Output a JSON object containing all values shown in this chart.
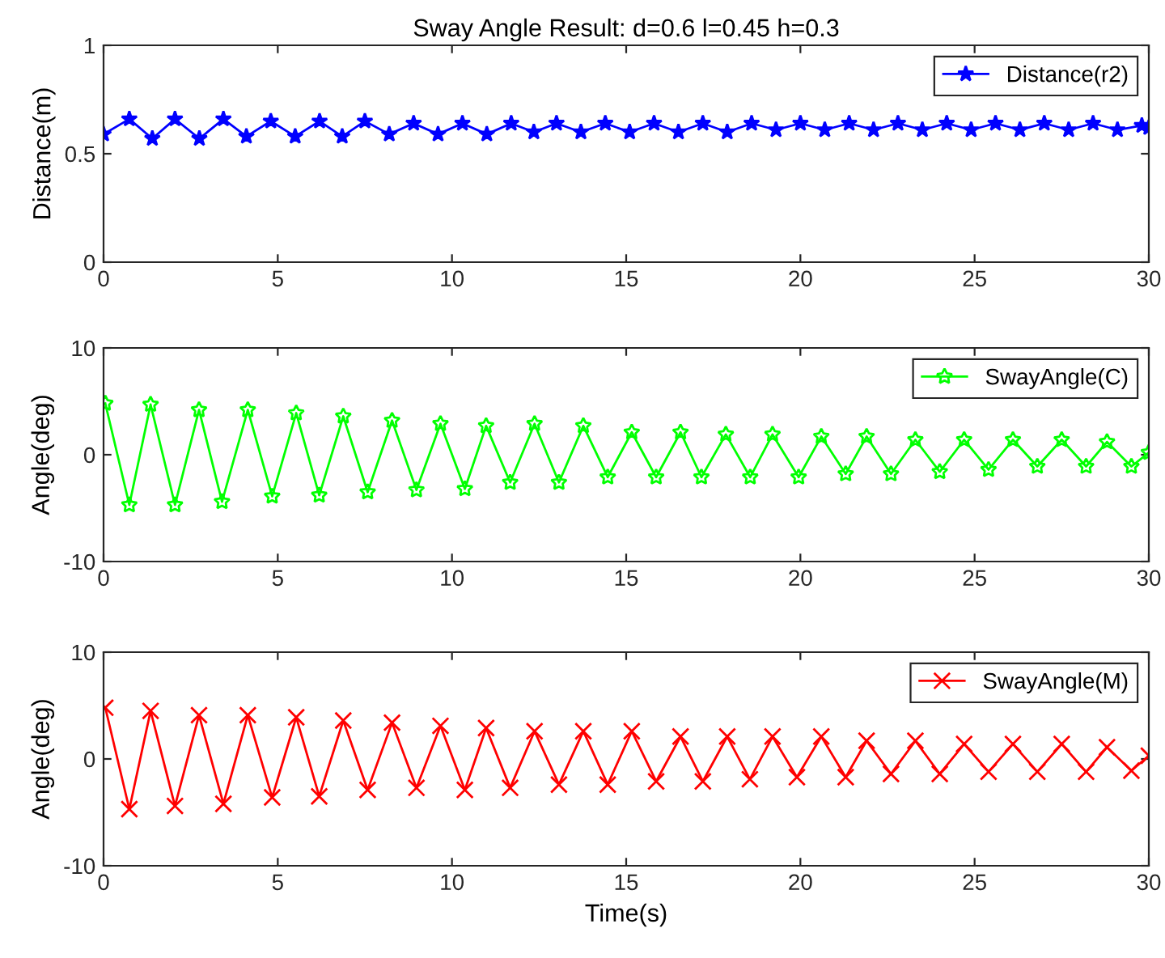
{
  "chart_data": [
    {
      "type": "line",
      "title": "Sway Angle Result: d=0.6 l=0.45 h=0.3",
      "ylabel": "Distance(m)",
      "xlim": [
        0,
        30
      ],
      "xticks": [
        0,
        5,
        10,
        15,
        20,
        25,
        30
      ],
      "ylim": [
        0,
        1
      ],
      "yticks": [
        0,
        0.5,
        1
      ],
      "legend": "top right",
      "marker": "asterisk",
      "grid": false,
      "series": [
        {
          "name": "Distance(r2)",
          "color": "#0000ff",
          "x": [
            0,
            0.74,
            1.4,
            2.05,
            2.75,
            3.44,
            4.1,
            4.8,
            5.5,
            6.2,
            6.85,
            7.5,
            8.2,
            8.9,
            9.6,
            10.3,
            11.0,
            11.7,
            12.35,
            13.0,
            13.7,
            14.4,
            15.1,
            15.8,
            16.5,
            17.2,
            17.9,
            18.6,
            19.3,
            20.0,
            20.7,
            21.4,
            22.1,
            22.8,
            23.5,
            24.2,
            24.9,
            25.6,
            26.3,
            27.0,
            27.7,
            28.4,
            29.1,
            29.8,
            30
          ],
          "values": [
            0.59,
            0.66,
            0.57,
            0.66,
            0.57,
            0.66,
            0.58,
            0.65,
            0.58,
            0.65,
            0.58,
            0.65,
            0.59,
            0.64,
            0.59,
            0.64,
            0.59,
            0.64,
            0.6,
            0.64,
            0.6,
            0.64,
            0.6,
            0.64,
            0.6,
            0.64,
            0.6,
            0.64,
            0.61,
            0.64,
            0.61,
            0.64,
            0.61,
            0.64,
            0.61,
            0.64,
            0.61,
            0.64,
            0.61,
            0.64,
            0.61,
            0.64,
            0.61,
            0.63,
            0.62
          ]
        }
      ]
    },
    {
      "type": "line",
      "ylabel": "Angle(deg)",
      "xlim": [
        0,
        30
      ],
      "xticks": [
        0,
        5,
        10,
        15,
        20,
        25,
        30
      ],
      "ylim": [
        -10,
        10
      ],
      "yticks": [
        -10,
        0,
        10
      ],
      "legend": "top right",
      "marker": "star",
      "grid": false,
      "series": [
        {
          "name": "SwayAngle(C)",
          "color": "#00ff00",
          "x": [
            0.05,
            0.74,
            1.35,
            2.05,
            2.74,
            3.4,
            4.14,
            4.84,
            5.53,
            6.19,
            6.88,
            7.58,
            8.28,
            8.98,
            9.67,
            10.37,
            10.98,
            11.67,
            12.37,
            13.07,
            13.77,
            14.47,
            15.16,
            15.86,
            16.56,
            17.16,
            17.86,
            18.56,
            19.2,
            19.95,
            20.6,
            21.3,
            21.9,
            22.6,
            23.3,
            24.0,
            24.7,
            25.4,
            26.1,
            26.8,
            27.5,
            28.2,
            28.8,
            29.5,
            30
          ],
          "values": [
            4.8,
            -4.7,
            4.7,
            -4.7,
            4.2,
            -4.4,
            4.2,
            -3.9,
            3.9,
            -3.8,
            3.6,
            -3.5,
            3.2,
            -3.3,
            2.9,
            -3.2,
            2.7,
            -2.6,
            2.9,
            -2.6,
            2.7,
            -2.1,
            2.1,
            -2.1,
            2.1,
            -2.1,
            1.9,
            -2.1,
            1.9,
            -2.1,
            1.7,
            -1.8,
            1.7,
            -1.8,
            1.4,
            -1.6,
            1.4,
            -1.4,
            1.4,
            -1.1,
            1.4,
            -1.1,
            1.2,
            -1.1,
            0.2
          ]
        }
      ]
    },
    {
      "type": "line",
      "ylabel": "Angle(deg)",
      "xlabel": "Time(s)",
      "xlim": [
        0,
        30
      ],
      "xticks": [
        0,
        5,
        10,
        15,
        20,
        25,
        30
      ],
      "ylim": [
        -10,
        10
      ],
      "yticks": [
        -10,
        0,
        10
      ],
      "legend": "top right",
      "marker": "cross",
      "grid": false,
      "series": [
        {
          "name": "SwayAngle(M)",
          "color": "#ff0000",
          "x": [
            0.05,
            0.74,
            1.35,
            2.05,
            2.74,
            3.44,
            4.14,
            4.84,
            5.53,
            6.19,
            6.88,
            7.58,
            8.28,
            8.98,
            9.67,
            10.37,
            10.98,
            11.67,
            12.37,
            13.07,
            13.77,
            14.47,
            15.16,
            15.86,
            16.56,
            17.2,
            17.9,
            18.55,
            19.2,
            19.9,
            20.6,
            21.3,
            21.9,
            22.6,
            23.3,
            24.0,
            24.7,
            25.4,
            26.1,
            26.8,
            27.5,
            28.2,
            28.8,
            29.5,
            30
          ],
          "values": [
            4.8,
            -4.7,
            4.5,
            -4.4,
            4.1,
            -4.2,
            4.1,
            -3.6,
            3.9,
            -3.5,
            3.6,
            -2.9,
            3.4,
            -2.7,
            3.1,
            -2.9,
            2.9,
            -2.7,
            2.6,
            -2.4,
            2.6,
            -2.4,
            2.6,
            -2.1,
            2.1,
            -2.1,
            2.1,
            -1.9,
            2.1,
            -1.7,
            2.1,
            -1.7,
            1.7,
            -1.4,
            1.7,
            -1.4,
            1.4,
            -1.2,
            1.4,
            -1.2,
            1.4,
            -1.2,
            1.1,
            -1.1,
            0.3
          ]
        }
      ]
    }
  ]
}
